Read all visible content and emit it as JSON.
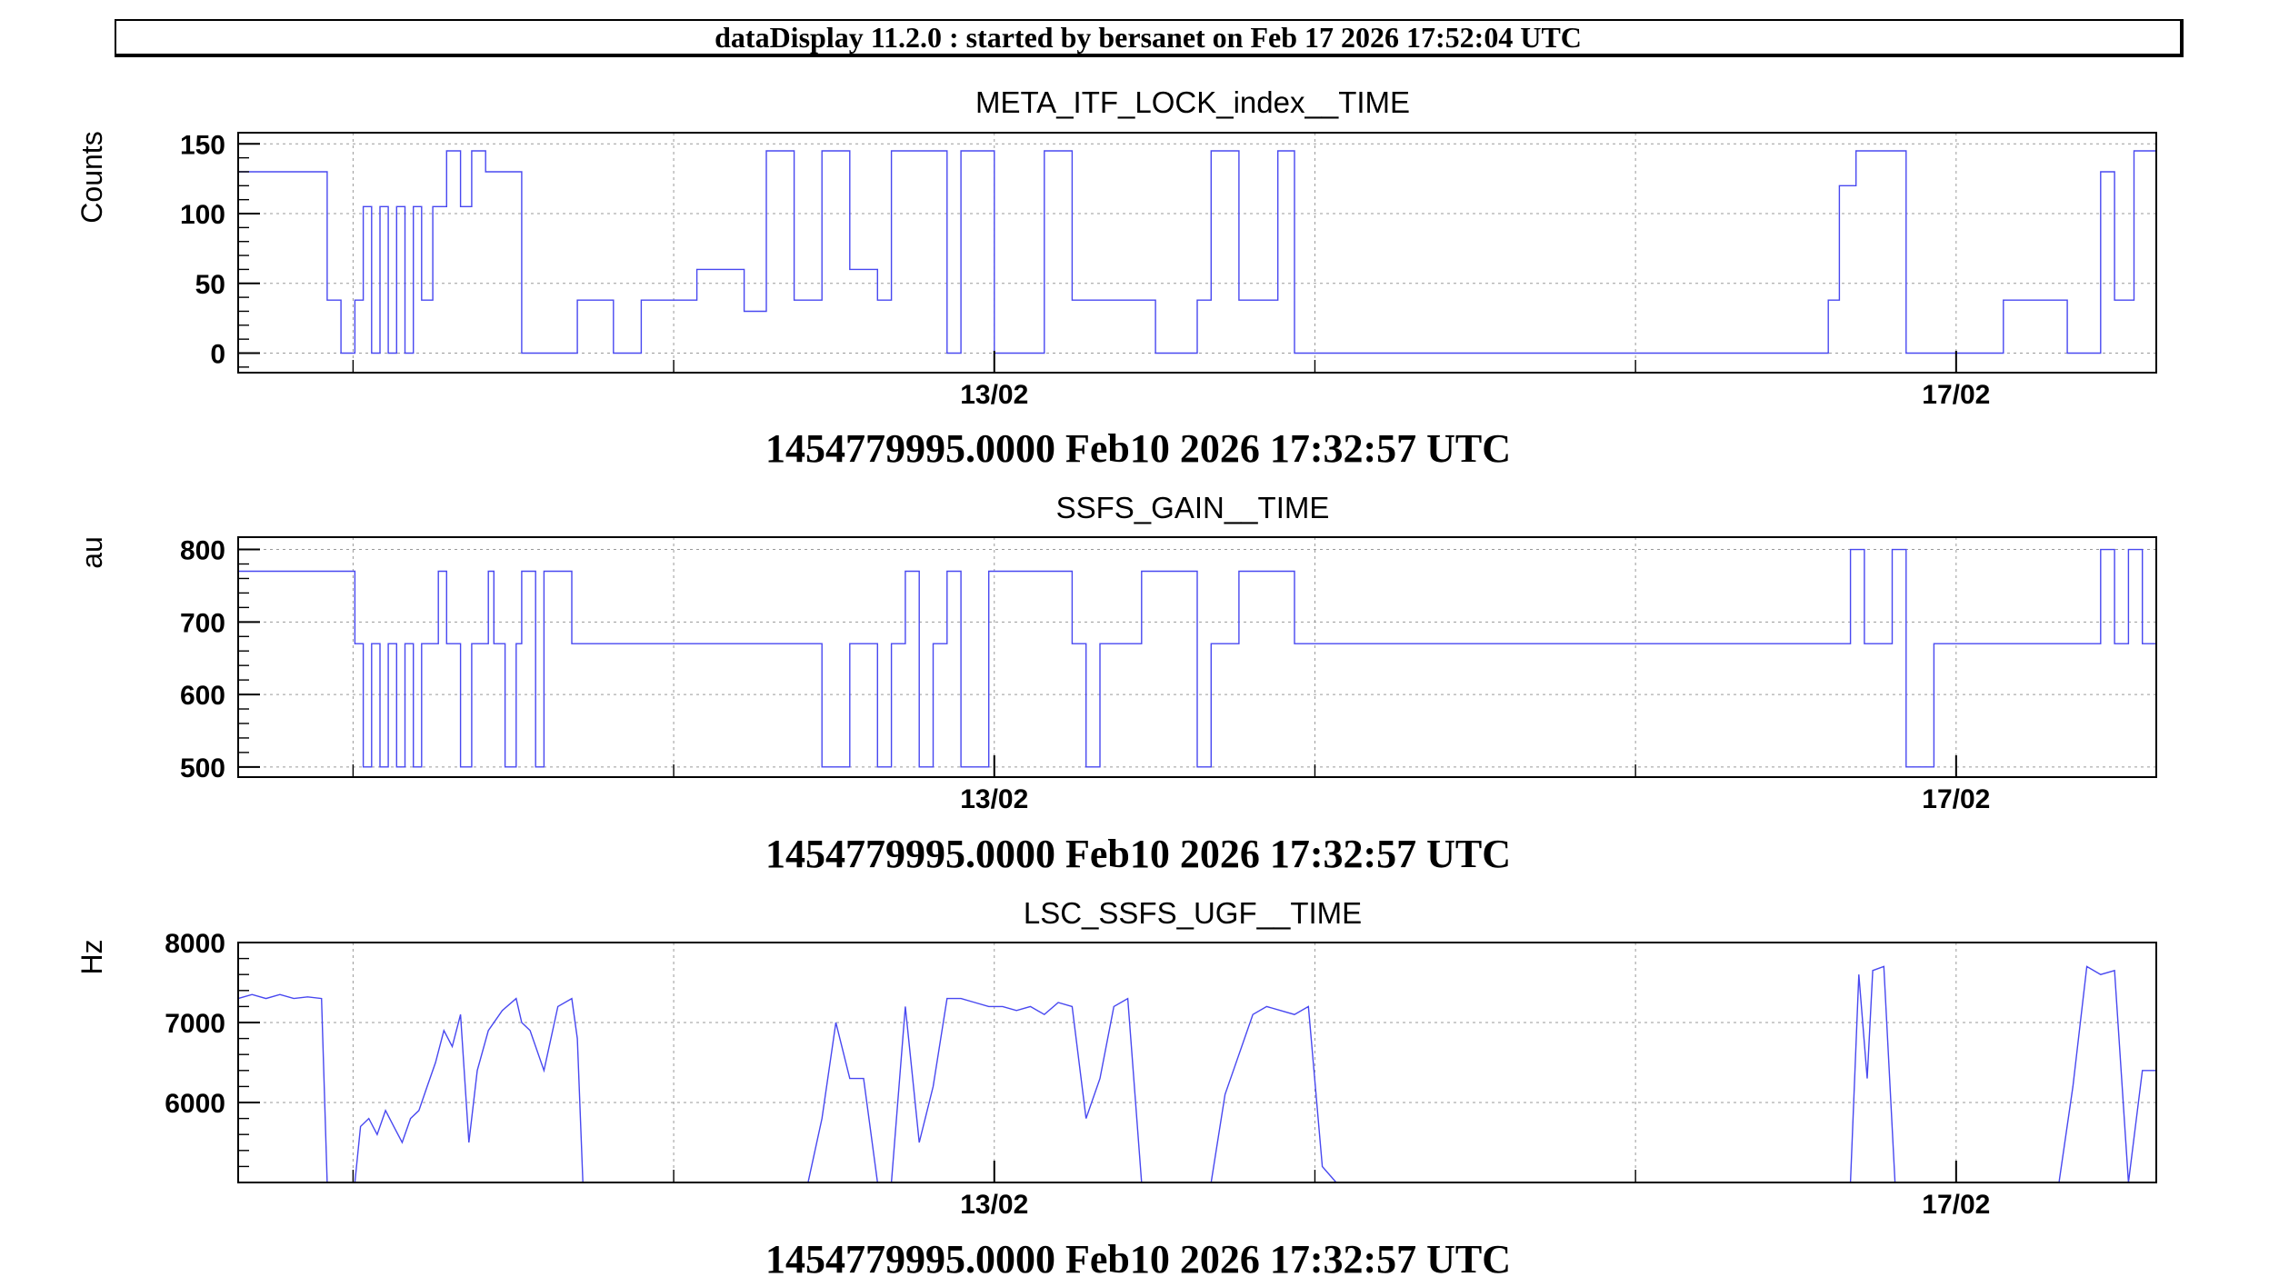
{
  "header": {
    "title": "dataDisplay 11.2.0 : started by bersanet on Feb 17 2026 17:52:04 UTC"
  },
  "colors": {
    "series": "#4848f0",
    "grid": "#9a9a9a",
    "frame": "#000000"
  },
  "chart_data": [
    {
      "type": "line",
      "title": "META_ITF_LOCK_index__TIME",
      "ylabel": "Counts",
      "xlabel": "1454779995.0000 Feb10 2026 17:32:57 UTC",
      "xlim": [
        0,
        6.9
      ],
      "ylim": [
        -14,
        158
      ],
      "yticks": [
        0,
        50,
        100,
        150
      ],
      "ytick_labels": [
        "0",
        "50",
        "100",
        "150"
      ],
      "xticks": [
        2.72,
        6.18
      ],
      "xtick_labels": [
        "13/02",
        "17/02"
      ],
      "grid": true,
      "series": [
        {
          "step": true,
          "x": [
            0,
            0.32,
            0.32,
            0.37,
            0.37,
            0.42,
            0.42,
            0.45,
            0.45,
            0.48,
            0.48,
            0.51,
            0.51,
            0.54,
            0.54,
            0.57,
            0.57,
            0.6,
            0.6,
            0.63,
            0.63,
            0.66,
            0.66,
            0.7,
            0.7,
            0.75,
            0.75,
            0.8,
            0.8,
            0.84,
            0.84,
            0.89,
            0.89,
            1.02,
            1.02,
            1.07,
            1.07,
            1.22,
            1.22,
            1.35,
            1.35,
            1.45,
            1.45,
            1.65,
            1.65,
            1.82,
            1.82,
            1.9,
            1.9,
            2.0,
            2.0,
            2.1,
            2.1,
            2.2,
            2.2,
            2.3,
            2.3,
            2.35,
            2.35,
            2.45,
            2.45,
            2.55,
            2.55,
            2.6,
            2.6,
            2.72,
            2.72,
            2.9,
            2.9,
            3.0,
            3.0,
            3.08,
            3.08,
            3.12,
            3.12,
            3.3,
            3.3,
            3.45,
            3.45,
            3.5,
            3.5,
            3.6,
            3.6,
            3.74,
            3.74,
            3.8,
            3.8,
            3.9,
            3.9,
            4.0,
            4.0,
            5.72,
            5.72,
            5.76,
            5.76,
            5.82,
            5.82,
            5.88,
            5.88,
            6.0,
            6.0,
            6.15,
            6.15,
            6.35,
            6.35,
            6.58,
            6.58,
            6.7,
            6.7,
            6.75,
            6.75,
            6.82,
            6.82,
            6.9
          ],
          "y": [
            130,
            130,
            38,
            38,
            0,
            0,
            38,
            38,
            105,
            105,
            0,
            0,
            105,
            105,
            0,
            0,
            105,
            105,
            0,
            0,
            105,
            105,
            38,
            38,
            105,
            105,
            145,
            145,
            105,
            105,
            145,
            145,
            130,
            130,
            0,
            0,
            0,
            0,
            38,
            38,
            0,
            0,
            38,
            38,
            60,
            60,
            30,
            30,
            145,
            145,
            38,
            38,
            145,
            145,
            60,
            60,
            38,
            38,
            145,
            145,
            145,
            145,
            0,
            0,
            145,
            145,
            0,
            0,
            145,
            145,
            38,
            38,
            38,
            38,
            38,
            38,
            0,
            0,
            38,
            38,
            145,
            145,
            38,
            38,
            145,
            145,
            0,
            0,
            0,
            0,
            0,
            0,
            38,
            38,
            120,
            120,
            145,
            145,
            145,
            145,
            0,
            0,
            0,
            0,
            38,
            38,
            0,
            0,
            130,
            130,
            38,
            38,
            145,
            145
          ]
        }
      ]
    },
    {
      "type": "line",
      "title": "SSFS_GAIN__TIME",
      "ylabel": "au",
      "xlabel": "1454779995.0000 Feb10 2026 17:32:57 UTC",
      "xlim": [
        0,
        6.9
      ],
      "ylim": [
        486,
        817
      ],
      "yticks": [
        500,
        600,
        700,
        800
      ],
      "ytick_labels": [
        "500",
        "600",
        "700",
        "800"
      ],
      "xticks": [
        2.72,
        6.18
      ],
      "xtick_labels": [
        "13/02",
        "17/02"
      ],
      "grid": true,
      "series": [
        {
          "step": true,
          "x": [
            0,
            0.42,
            0.42,
            0.45,
            0.45,
            0.48,
            0.48,
            0.51,
            0.51,
            0.54,
            0.54,
            0.57,
            0.57,
            0.6,
            0.6,
            0.63,
            0.63,
            0.66,
            0.66,
            0.7,
            0.7,
            0.72,
            0.72,
            0.75,
            0.75,
            0.8,
            0.8,
            0.84,
            0.84,
            0.9,
            0.9,
            0.92,
            0.92,
            0.96,
            0.96,
            1.0,
            1.0,
            1.02,
            1.02,
            1.07,
            1.07,
            1.1,
            1.1,
            1.2,
            1.2,
            1.26,
            1.26,
            1.3,
            1.3,
            1.45,
            1.45,
            1.5,
            1.5,
            2.1,
            2.1,
            2.2,
            2.2,
            2.3,
            2.3,
            2.35,
            2.35,
            2.4,
            2.4,
            2.45,
            2.45,
            2.5,
            2.5,
            2.55,
            2.55,
            2.6,
            2.6,
            2.7,
            2.7,
            2.9,
            2.9,
            3.0,
            3.0,
            3.05,
            3.05,
            3.1,
            3.1,
            3.25,
            3.25,
            3.3,
            3.3,
            3.35,
            3.35,
            3.45,
            3.45,
            3.5,
            3.5,
            3.6,
            3.6,
            3.7,
            3.7,
            3.8,
            3.8,
            3.9,
            3.9,
            4.0,
            4.0,
            5.8,
            5.8,
            5.85,
            5.85,
            5.95,
            5.95,
            6.0,
            6.0,
            6.1,
            6.1,
            6.15,
            6.15,
            6.5,
            6.5,
            6.7,
            6.7,
            6.75,
            6.75,
            6.8,
            6.8,
            6.85,
            6.85,
            6.9
          ],
          "y": [
            770,
            770,
            670,
            670,
            500,
            500,
            670,
            670,
            500,
            500,
            670,
            670,
            500,
            500,
            670,
            670,
            500,
            500,
            670,
            670,
            670,
            670,
            770,
            770,
            670,
            670,
            500,
            500,
            670,
            670,
            770,
            770,
            670,
            670,
            500,
            500,
            670,
            670,
            770,
            770,
            500,
            500,
            770,
            770,
            670,
            670,
            670,
            670,
            670,
            670,
            670,
            670,
            670,
            670,
            500,
            500,
            670,
            670,
            500,
            500,
            670,
            670,
            770,
            770,
            500,
            500,
            670,
            670,
            770,
            770,
            500,
            500,
            770,
            770,
            770,
            770,
            670,
            670,
            500,
            500,
            670,
            670,
            770,
            770,
            770,
            770,
            770,
            770,
            500,
            500,
            670,
            670,
            770,
            770,
            770,
            770,
            670,
            670,
            670,
            670,
            670,
            670,
            800,
            800,
            670,
            670,
            800,
            800,
            500,
            500,
            670,
            670,
            670,
            670,
            670,
            670,
            800,
            800,
            670,
            670,
            800,
            800,
            670,
            670
          ]
        }
      ]
    },
    {
      "type": "line",
      "title": "LSC_SSFS_UGF__TIME",
      "ylabel": "Hz",
      "xlabel": "1454779995.0000 Feb10 2026 17:32:57 UTC",
      "xlim": [
        0,
        6.9
      ],
      "ylim": [
        5000,
        8000
      ],
      "yticks": [
        6000,
        7000,
        8000
      ],
      "ytick_labels": [
        "6000",
        "7000",
        "8000"
      ],
      "xticks": [
        2.72,
        6.18
      ],
      "xtick_labels": [
        "13/02",
        "17/02"
      ],
      "grid": true,
      "series": [
        {
          "x": [
            0,
            0.05,
            0.1,
            0.15,
            0.2,
            0.25,
            0.3,
            0.32,
            0.33,
            0.42,
            0.44,
            0.47,
            0.5,
            0.53,
            0.56,
            0.59,
            0.62,
            0.65,
            0.68,
            0.71,
            0.74,
            0.77,
            0.8,
            0.83,
            0.86,
            0.9,
            0.95,
            1.0,
            1.02,
            1.05,
            1.1,
            1.15,
            1.2,
            1.22,
            1.24,
            1.26,
            1.3,
            1.35,
            1.4,
            1.45,
            1.5,
            1.55,
            1.6,
            1.65,
            1.7,
            1.75,
            1.8,
            1.85,
            1.9,
            1.95,
            2.0,
            2.05,
            2.1,
            2.15,
            2.2,
            2.25,
            2.3,
            2.35,
            2.4,
            2.45,
            2.5,
            2.55,
            2.6,
            2.65,
            2.7,
            2.75,
            2.8,
            2.85,
            2.9,
            2.95,
            3.0,
            3.05,
            3.1,
            3.15,
            3.2,
            3.25,
            3.3,
            3.35,
            3.4,
            3.45,
            3.5,
            3.55,
            3.6,
            3.65,
            3.7,
            3.75,
            3.8,
            3.85,
            3.9,
            3.95,
            4.0,
            5.8,
            5.83,
            5.86,
            5.88,
            5.92,
            5.96,
            6.0,
            6.1,
            6.15,
            6.2,
            6.3,
            6.4,
            6.5,
            6.55,
            6.6,
            6.65,
            6.7,
            6.75,
            6.8,
            6.85,
            6.9
          ],
          "y": [
            7300,
            7350,
            7300,
            7350,
            7300,
            7320,
            7300,
            5000,
            5000,
            5000,
            5700,
            5800,
            5600,
            5900,
            5700,
            5500,
            5800,
            5900,
            6200,
            6500,
            6900,
            6700,
            7100,
            5500,
            6400,
            6900,
            7150,
            7300,
            7000,
            6900,
            6400,
            7200,
            7300,
            6800,
            5000,
            5000,
            5000,
            5000,
            5000,
            5000,
            5000,
            5000,
            5000,
            5000,
            5000,
            5000,
            5000,
            5000,
            5000,
            5000,
            5000,
            5000,
            5800,
            7000,
            6300,
            6300,
            5000,
            5000,
            7200,
            5500,
            6200,
            7300,
            7300,
            7250,
            7200,
            7200,
            7150,
            7200,
            7100,
            7250,
            7200,
            5800,
            6300,
            7200,
            7300,
            5000,
            5000,
            5000,
            5000,
            5000,
            5000,
            6100,
            6600,
            7100,
            7200,
            7150,
            7100,
            7200,
            5200,
            5000,
            5000,
            5000,
            7600,
            6300,
            7650,
            7700,
            5000,
            5000,
            5000,
            5000,
            5000,
            5000,
            5000,
            5000,
            5000,
            6200,
            7700,
            7600,
            7650,
            5000,
            6400,
            6400
          ]
        }
      ]
    }
  ]
}
